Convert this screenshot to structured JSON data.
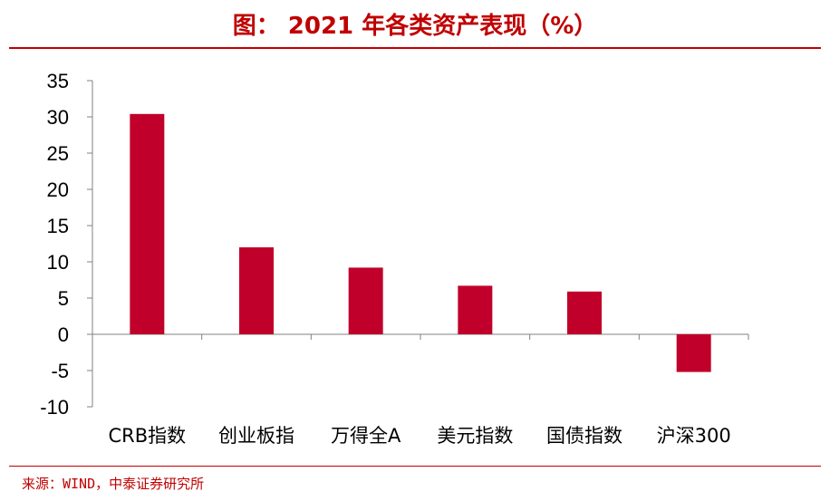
{
  "header": {
    "title": "图：  2021 年各类资产表现（%）"
  },
  "footer": {
    "source": "来源：WIND，中泰证券研究所"
  },
  "colors": {
    "accent": "#c00000",
    "bar": "#c0002a",
    "axis": "#808080"
  },
  "chart_data": {
    "type": "bar",
    "title": "2021 年各类资产表现（%）",
    "categories": [
      "CRB指数",
      "创业板指",
      "万得全A",
      "美元指数",
      "国债指数",
      "沪深300"
    ],
    "values": [
      30.4,
      12.0,
      9.2,
      6.7,
      5.9,
      -5.2
    ],
    "ylim": [
      -10,
      35
    ],
    "yticks": [
      35,
      30,
      25,
      20,
      15,
      10,
      5,
      0,
      -5,
      -10
    ],
    "grid": false,
    "legend": "none"
  }
}
